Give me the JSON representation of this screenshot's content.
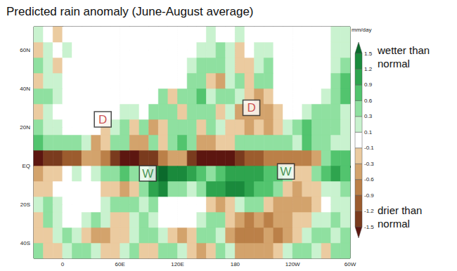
{
  "chart_data": {
    "type": "heatmap",
    "title": "Predicted rain anomaly (June-August average)",
    "xlim": [
      -30,
      300
    ],
    "ylim": [
      -48,
      72
    ],
    "xticks": [
      0,
      {
        "value": 60,
        "label": "60E"
      },
      {
        "value": 120,
        "label": "120E"
      },
      180,
      {
        "value": 240,
        "label": "120W"
      },
      {
        "value": 300,
        "label": "60W"
      }
    ],
    "yticks": [
      {
        "value": -40,
        "label": "40S"
      },
      {
        "value": -20,
        "label": "20S"
      },
      {
        "value": 0,
        "label": "EQ"
      },
      {
        "value": 20,
        "label": "20N"
      },
      {
        "value": 40,
        "label": "40N"
      },
      {
        "value": 60,
        "label": "60N"
      }
    ],
    "grid": true,
    "x_bins": [
      -30,
      -20,
      -10,
      0,
      10,
      20,
      30,
      40,
      50,
      60,
      70,
      80,
      90,
      100,
      110,
      120,
      130,
      140,
      150,
      160,
      170,
      180,
      190,
      200,
      210,
      220,
      230,
      240,
      250,
      260,
      270,
      280,
      290,
      300
    ],
    "y_bins": [
      -48,
      -40,
      -32,
      -24,
      -16,
      -8,
      0,
      8,
      16,
      24,
      32,
      40,
      48,
      56,
      64,
      72
    ],
    "cells": [
      [
        0.3,
        -0.2,
        -0.3,
        0.2,
        0.4,
        0.3,
        0.2,
        -0.2,
        -0.3,
        0.2,
        0.3,
        -0.2,
        -0.3,
        0.3,
        0.4,
        0.2,
        -0.2,
        -0.4,
        -0.3,
        0.3,
        0.2,
        -0.5,
        -0.4,
        -0.6,
        -0.5,
        -0.3,
        0.2,
        0.3,
        0.4,
        0.2,
        -0.2,
        0.3,
        0.4
      ],
      [
        -0.3,
        -0.2,
        0.2,
        0.3,
        0.1,
        -0.3,
        -0.5,
        -0.4,
        -0.3,
        -0.2,
        0.2,
        0.4,
        0.3,
        0.2,
        -0.3,
        -0.4,
        -0.2,
        0.3,
        0.4,
        0.2,
        -0.4,
        -0.7,
        -0.9,
        -0.8,
        -0.6,
        -0.7,
        -0.5,
        -0.3,
        0.2,
        0.4,
        0.3,
        0.2,
        0.3
      ],
      [
        -0.2,
        0.3,
        0.2,
        0,
        0,
        0.1,
        0.3,
        0.2,
        -0.2,
        -0.3,
        0.2,
        0.3,
        0.2,
        0,
        0,
        0,
        0,
        0.2,
        0.4,
        0.3,
        -0.3,
        -0.5,
        -0.7,
        -0.6,
        -0.8,
        -0.6,
        -0.4,
        -0.3,
        -0.2,
        0.1,
        0.2,
        0.3,
        0.2
      ],
      [
        0.2,
        0.3,
        0.1,
        0,
        0,
        0,
        0,
        0.2,
        0.4,
        0.5,
        0.3,
        0.2,
        0.3,
        0,
        0,
        0,
        0,
        0,
        -0.2,
        -0.4,
        -0.3,
        0.2,
        0.4,
        0.3,
        -0.3,
        -0.5,
        -0.6,
        -0.5,
        -0.4,
        -0.2,
        0,
        0.1,
        0.2
      ],
      [
        -0.3,
        -0.2,
        0,
        0,
        0,
        0,
        0,
        -0.2,
        -0.3,
        -0.4,
        -0.3,
        0.3,
        1.0,
        1.2,
        0.4,
        0.3,
        0.2,
        0.4,
        0.9,
        1.1,
        1.2,
        1.2,
        1.0,
        0.8,
        0.6,
        0.3,
        -0.2,
        -0.4,
        -0.3,
        -0.2,
        0.1,
        0.2,
        0.3
      ],
      [
        -0.4,
        -0.3,
        -0.2,
        0,
        0.1,
        0,
        0.1,
        0.3,
        0.5,
        0.6,
        0.4,
        0.3,
        1.2,
        1.5,
        1.4,
        1.3,
        1.0,
        0.6,
        0.5,
        0.8,
        0.9,
        1.0,
        1.1,
        0.9,
        0.7,
        0.6,
        0.3,
        -0.3,
        -0.2,
        0.3,
        0.8,
        0.9,
        0.6
      ],
      [
        -1.6,
        -1.5,
        -1.4,
        -1.2,
        -1.0,
        -0.6,
        -0.5,
        -0.9,
        -1.3,
        -1.6,
        -1.7,
        -1.5,
        -1.3,
        -0.8,
        -0.4,
        -0.6,
        -1.3,
        -1.8,
        -1.8,
        -1.7,
        -1.6,
        -1.4,
        -1.2,
        -1.0,
        -0.9,
        -0.8,
        -0.7,
        -0.8,
        -0.9,
        -0.6,
        0.3,
        0.6,
        0.8
      ],
      [
        0.6,
        0.5,
        0.3,
        0.4,
        0.3,
        0.1,
        -0.6,
        -0.3,
        0.4,
        0.3,
        -0.5,
        -0.4,
        0.4,
        -0.3,
        0.3,
        0.6,
        0.3,
        -0.4,
        -0.6,
        -0.3,
        -0.2,
        0.3,
        0.4,
        0.3,
        0.5,
        0.4,
        0.3,
        0.2,
        0.6,
        0.5,
        0.3,
        0.2,
        0.1
      ],
      [
        0.3,
        0.2,
        0.1,
        0,
        0,
        0,
        0,
        -0.2,
        0.2,
        0.3,
        -0.3,
        0.3,
        -0.4,
        -0.3,
        0.3,
        0.5,
        0.3,
        -0.3,
        0.3,
        0.2,
        -0.3,
        -0.3,
        -0.4,
        -0.3,
        -0.4,
        -0.3,
        0.2,
        0.4,
        0.6,
        0.3,
        0.3,
        0.4,
        0.2
      ],
      [
        -0.2,
        0.1,
        0,
        0,
        0,
        0,
        0,
        0,
        0,
        0.1,
        0.2,
        0,
        0.3,
        0.4,
        0.3,
        -0.3,
        0.3,
        0.5,
        0.3,
        -0.2,
        0.2,
        -0.4,
        -0.6,
        -0.5,
        -0.4,
        -0.2,
        0,
        0,
        0.2,
        0.4,
        0.5,
        0.3,
        0.2
      ],
      [
        0.3,
        0.4,
        0.1,
        0,
        0,
        0,
        0,
        0,
        0,
        0,
        0,
        0,
        0,
        0.3,
        -0.2,
        0.4,
        0.3,
        0.6,
        0.2,
        0.4,
        0.3,
        0.2,
        -0.3,
        -0.4,
        -0.2,
        0,
        0,
        0,
        0,
        0,
        0.2,
        0.5,
        0.7
      ],
      [
        -0.3,
        0.2,
        0.1,
        0,
        0,
        0,
        0,
        0,
        0,
        0,
        0,
        0,
        0,
        0,
        0,
        0,
        0.3,
        0.5,
        -0.3,
        -0.4,
        0.2,
        0.3,
        -0.2,
        0.4,
        0.3,
        0,
        0,
        0,
        0,
        0,
        0,
        0.3,
        0.6
      ],
      [
        0.3,
        0.2,
        -0.2,
        0,
        0,
        0,
        0,
        0,
        0,
        0,
        0,
        0,
        0,
        0,
        0,
        0,
        0.1,
        0.3,
        0.4,
        0.3,
        0.2,
        -0.2,
        -0.3,
        0.2,
        0.3,
        0,
        0,
        0,
        0,
        0,
        0,
        0.1,
        0.3
      ],
      [
        -0.2,
        0.2,
        0,
        0.1,
        0,
        0,
        0,
        0,
        0,
        0,
        0,
        0,
        0,
        0,
        0,
        0,
        0,
        0.1,
        0.2,
        0.3,
        0.2,
        -0.2,
        -0.1,
        0.2,
        0.1,
        0,
        0,
        0,
        0,
        0,
        0,
        0.2,
        0.1
      ],
      [
        0.1,
        0,
        -0.2,
        0,
        0,
        0,
        0,
        0,
        0,
        0,
        0,
        0,
        0,
        0,
        0,
        0,
        0,
        0,
        0.2,
        0,
        0,
        0.2,
        0,
        0,
        0,
        0,
        0,
        0,
        0,
        0,
        0,
        0.1,
        0.2
      ]
    ],
    "colorbar": {
      "label": "mm/day",
      "levels": [
        -1.5,
        -1.2,
        -0.9,
        -0.6,
        -0.3,
        -0.1,
        0.1,
        0.3,
        0.6,
        0.9,
        1.2,
        1.5
      ],
      "top_text": "wetter than normal",
      "bottom_text": "drier than normal"
    },
    "annotations": [
      {
        "text": "D",
        "x": 42,
        "y": 24,
        "color": "#c0282a"
      },
      {
        "text": "D",
        "x": 197,
        "y": 30,
        "color": "#c0282a"
      },
      {
        "text": "W",
        "x": 89,
        "y": -4,
        "color": "#1f7a30"
      },
      {
        "text": "W",
        "x": 233,
        "y": -3,
        "color": "#1f7a30"
      }
    ]
  }
}
